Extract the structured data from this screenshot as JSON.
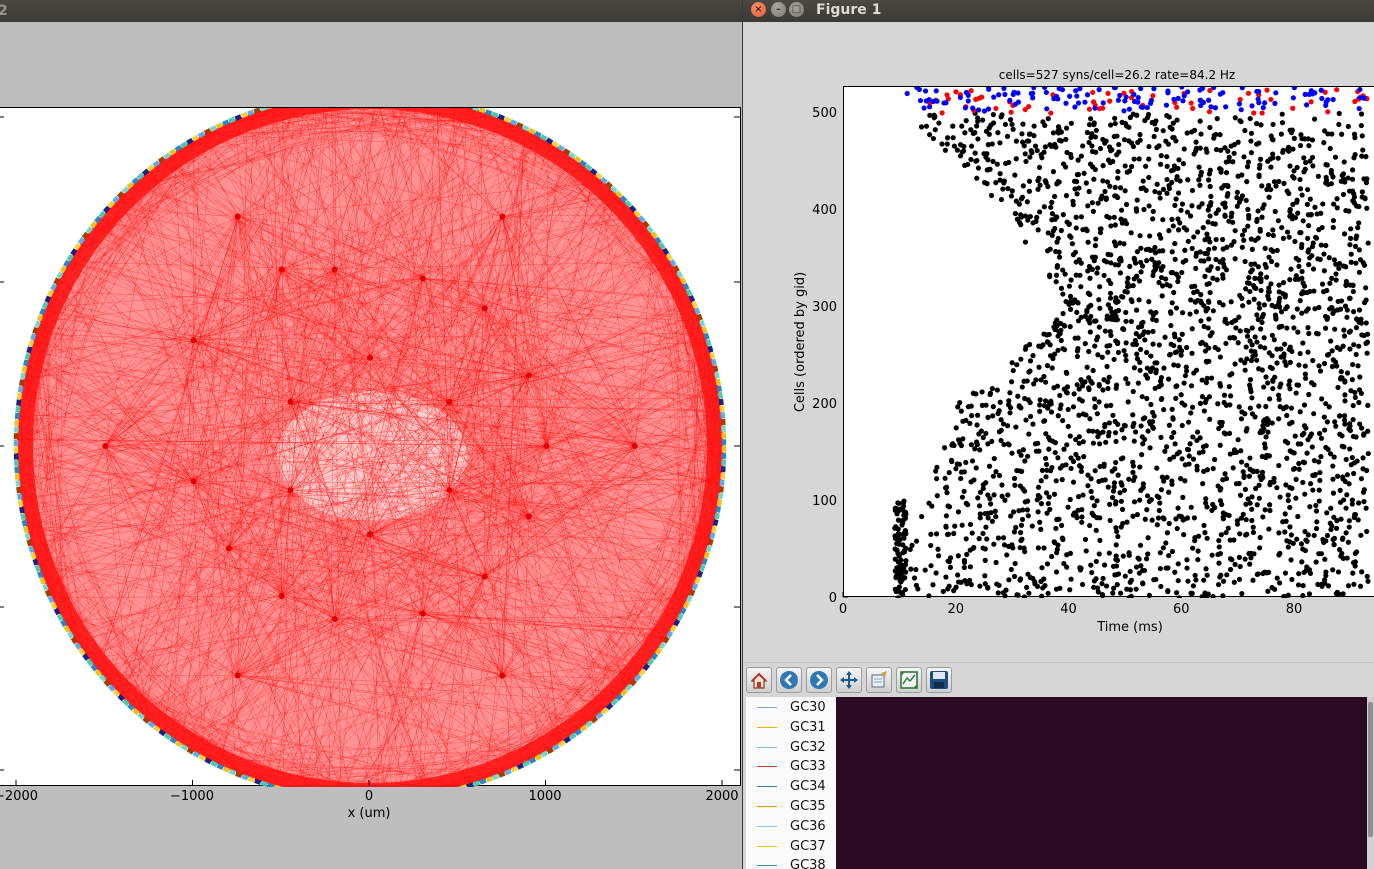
{
  "left_window": {
    "title_fragment": "2",
    "xlabel": "x (um)",
    "xticks": [
      "−2000",
      "−1000",
      "0",
      "1000",
      "2000"
    ]
  },
  "right_window": {
    "title": "Figure 1",
    "buttons": {
      "close": "×",
      "minimize": "–",
      "maximize": "□"
    },
    "toolbar": [
      "home-icon",
      "back-arrow-icon",
      "forward-arrow-icon",
      "pan-icon",
      "zoom-icon",
      "subplots-icon",
      "save-icon"
    ],
    "legend": [
      {
        "label": "GC30",
        "color": "#6fa8dc"
      },
      {
        "label": "GC31",
        "color": "#e6b800"
      },
      {
        "label": "GC32",
        "color": "#7ec8c8"
      },
      {
        "label": "GC33",
        "color": "#c0392b"
      },
      {
        "label": "GC34",
        "color": "#2e7fb8"
      },
      {
        "label": "GC35",
        "color": "#e69500"
      },
      {
        "label": "GC36",
        "color": "#8fc3e8"
      },
      {
        "label": "GC37",
        "color": "#f1c40f"
      },
      {
        "label": "GC38",
        "color": "#2a9d8f"
      }
    ]
  },
  "colors": {
    "connection": "#ff0000",
    "raster_black": "#000000",
    "raster_red": "#ff0000",
    "raster_blue": "#0000ff",
    "terminal": "#2c0a24"
  },
  "chart_data": [
    {
      "type": "network-diagram",
      "xlabel": "x (um)",
      "xlim": [
        -2100,
        2100
      ],
      "xticks": [
        -2000,
        -1000,
        0,
        1000,
        2000
      ],
      "hubs": [
        {
          "x": -1500,
          "y": 0
        },
        {
          "x": 1500,
          "y": 0
        },
        {
          "x": -750,
          "y": 1300
        },
        {
          "x": 750,
          "y": 1300
        },
        {
          "x": -750,
          "y": -1300
        },
        {
          "x": 750,
          "y": -1300
        },
        {
          "x": -500,
          "y": 1000
        },
        {
          "x": 300,
          "y": 950
        },
        {
          "x": -1000,
          "y": 600
        },
        {
          "x": 900,
          "y": 400
        },
        {
          "x": -1000,
          "y": -200
        },
        {
          "x": 1000,
          "y": 0
        },
        {
          "x": -200,
          "y": 1000
        },
        {
          "x": 650,
          "y": 780
        },
        {
          "x": -500,
          "y": -850
        },
        {
          "x": 300,
          "y": -950
        },
        {
          "x": -800,
          "y": -580
        },
        {
          "x": 900,
          "y": -400
        },
        {
          "x": -450,
          "y": 250
        },
        {
          "x": 450,
          "y": 250
        },
        {
          "x": -450,
          "y": -250
        },
        {
          "x": 450,
          "y": -250
        },
        {
          "x": 0,
          "y": 500
        },
        {
          "x": 0,
          "y": -500
        },
        {
          "x": -200,
          "y": -980
        },
        {
          "x": 650,
          "y": -740
        }
      ],
      "ring_radius": 2000
    },
    {
      "type": "scatter",
      "title": "cells=527 syns/cell=26.2 rate=84.2 Hz",
      "xlabel": "Time (ms)",
      "ylabel": "Cells (ordered by gid)",
      "xlim": [
        0,
        93
      ],
      "ylim": [
        0,
        527
      ],
      "xticks": [
        0,
        20,
        40,
        60,
        80
      ],
      "yticks": [
        0,
        100,
        200,
        300,
        400,
        500
      ],
      "series": [
        {
          "color": "black",
          "gid_range": [
            0,
            500
          ],
          "onset_ms": [
            [
              0,
              9
            ],
            [
              100,
              14
            ],
            [
              200,
              20
            ],
            [
              300,
              40
            ],
            [
              400,
              28
            ],
            [
              500,
              11
            ]
          ]
        },
        {
          "color": "red",
          "gid_range": [
            500,
            527
          ]
        },
        {
          "color": "blue",
          "gid_range": [
            500,
            527
          ]
        }
      ]
    }
  ]
}
